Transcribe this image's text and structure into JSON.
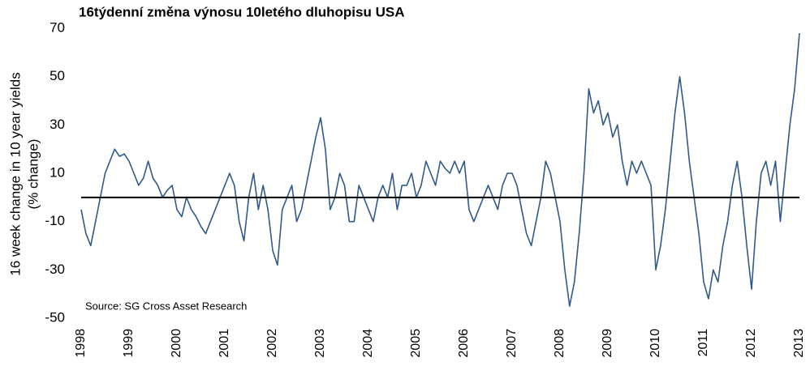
{
  "chart_data": {
    "type": "line",
    "title": "16týdenní změna výnosu 10letého dluhopisu USA",
    "y_label": [
      "16 week change in 10 year yields",
      "(% change)"
    ],
    "annotation": "Source: SG Cross Asset Research",
    "xlim": [
      1998,
      2013
    ],
    "xticks": [
      1998,
      1999,
      2000,
      2001,
      2002,
      2003,
      2004,
      2005,
      2006,
      2007,
      2008,
      2009,
      2010,
      2011,
      2012,
      2013
    ],
    "ylim": [
      -50,
      70
    ],
    "yticks": [
      -50,
      -30,
      -10,
      10,
      30,
      50,
      70
    ],
    "reference_line": 0,
    "x": [
      1998,
      1998.1,
      1998.2,
      1998.3,
      1998.4,
      1998.5,
      1998.6,
      1998.7,
      1998.8,
      1998.9,
      1999,
      1999.1,
      1999.2,
      1999.3,
      1999.4,
      1999.5,
      1999.6,
      1999.7,
      1999.8,
      1999.9,
      2000,
      2000.1,
      2000.2,
      2000.3,
      2000.4,
      2000.5,
      2000.6,
      2000.7,
      2000.8,
      2000.9,
      2001,
      2001.1,
      2001.2,
      2001.3,
      2001.4,
      2001.5,
      2001.6,
      2001.7,
      2001.8,
      2001.9,
      2002,
      2002.1,
      2002.2,
      2002.3,
      2002.4,
      2002.5,
      2002.6,
      2002.7,
      2002.8,
      2002.9,
      2003,
      2003.1,
      2003.2,
      2003.3,
      2003.4,
      2003.5,
      2003.6,
      2003.7,
      2003.8,
      2003.9,
      2004,
      2004.1,
      2004.2,
      2004.3,
      2004.4,
      2004.5,
      2004.6,
      2004.7,
      2004.8,
      2004.9,
      2005,
      2005.1,
      2005.2,
      2005.3,
      2005.4,
      2005.5,
      2005.6,
      2005.7,
      2005.8,
      2005.9,
      2006,
      2006.1,
      2006.2,
      2006.3,
      2006.4,
      2006.5,
      2006.6,
      2006.7,
      2006.8,
      2006.9,
      2007,
      2007.1,
      2007.2,
      2007.3,
      2007.4,
      2007.5,
      2007.6,
      2007.7,
      2007.8,
      2007.9,
      2008,
      2008.1,
      2008.2,
      2008.3,
      2008.4,
      2008.5,
      2008.6,
      2008.7,
      2008.8,
      2008.9,
      2009,
      2009.1,
      2009.2,
      2009.3,
      2009.4,
      2009.5,
      2009.6,
      2009.7,
      2009.8,
      2009.9,
      2010,
      2010.1,
      2010.2,
      2010.3,
      2010.4,
      2010.5,
      2010.6,
      2010.7,
      2010.8,
      2010.9,
      2011,
      2011.1,
      2011.2,
      2011.3,
      2011.4,
      2011.5,
      2011.6,
      2011.7,
      2011.8,
      2011.9,
      2012,
      2012.1,
      2012.2,
      2012.3,
      2012.4,
      2012.5,
      2012.6,
      2012.7,
      2012.8,
      2012.9,
      2013
    ],
    "series": [
      {
        "name": "16 week change",
        "color": "#2f5a8a",
        "values": [
          -5,
          -15,
          -20,
          -10,
          0,
          10,
          15,
          20,
          17,
          18,
          15,
          10,
          5,
          8,
          15,
          8,
          5,
          0,
          3,
          5,
          -5,
          -8,
          0,
          -5,
          -8,
          -12,
          -15,
          -10,
          -5,
          0,
          5,
          10,
          5,
          -10,
          -18,
          0,
          10,
          -5,
          5,
          -5,
          -22,
          -28,
          -5,
          0,
          5,
          -10,
          -5,
          5,
          15,
          25,
          33,
          20,
          -5,
          0,
          10,
          5,
          -10,
          -10,
          5,
          0,
          -5,
          -10,
          0,
          5,
          0,
          10,
          -5,
          5,
          5,
          10,
          0,
          5,
          15,
          10,
          5,
          15,
          12,
          10,
          15,
          10,
          15,
          -5,
          -10,
          -5,
          0,
          5,
          0,
          -5,
          5,
          10,
          10,
          5,
          -5,
          -15,
          -20,
          -10,
          0,
          15,
          10,
          0,
          -10,
          -30,
          -45,
          -35,
          -15,
          10,
          45,
          35,
          40,
          30,
          35,
          25,
          30,
          15,
          5,
          15,
          10,
          15,
          10,
          5,
          -30,
          -20,
          -5,
          15,
          35,
          50,
          35,
          15,
          0,
          -15,
          -35,
          -42,
          -30,
          -35,
          -20,
          -10,
          5,
          15,
          0,
          -20,
          -38,
          -10,
          10,
          15,
          5,
          15,
          -10,
          10,
          30,
          45,
          68
        ]
      }
    ]
  }
}
